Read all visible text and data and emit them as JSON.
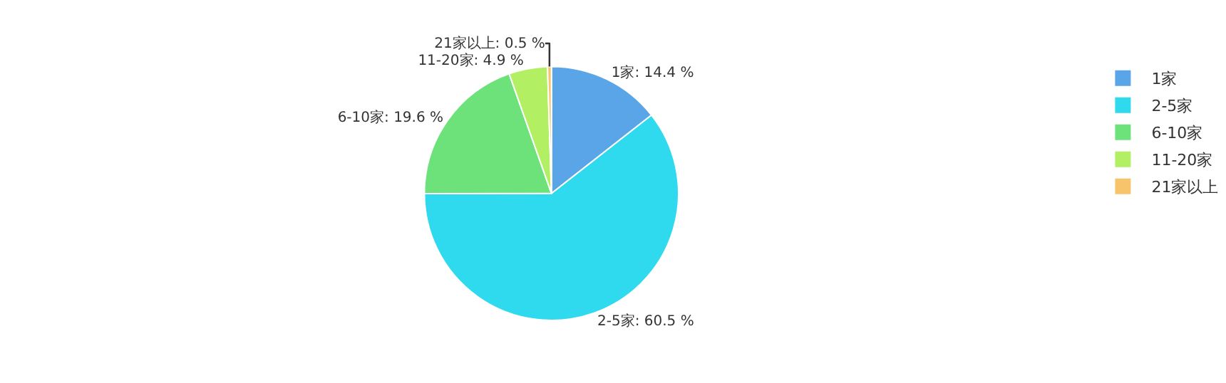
{
  "chart_data": {
    "type": "pie",
    "categories": [
      "1家",
      "2-5家",
      "6-10家",
      "11-20家",
      "21家以上"
    ],
    "values": [
      14.4,
      60.5,
      19.6,
      4.9,
      0.5
    ],
    "colors": [
      "#5aa5e8",
      "#2fd9ee",
      "#6ee27a",
      "#b2ef62",
      "#f7c46c"
    ],
    "value_labels": [
      "1家: 14.4 %",
      "2-5家: 60.5 %",
      "6-10家: 19.6 %",
      "11-20家: 4.9 %",
      "21家以上: 0.5 %"
    ],
    "legend": "right"
  }
}
